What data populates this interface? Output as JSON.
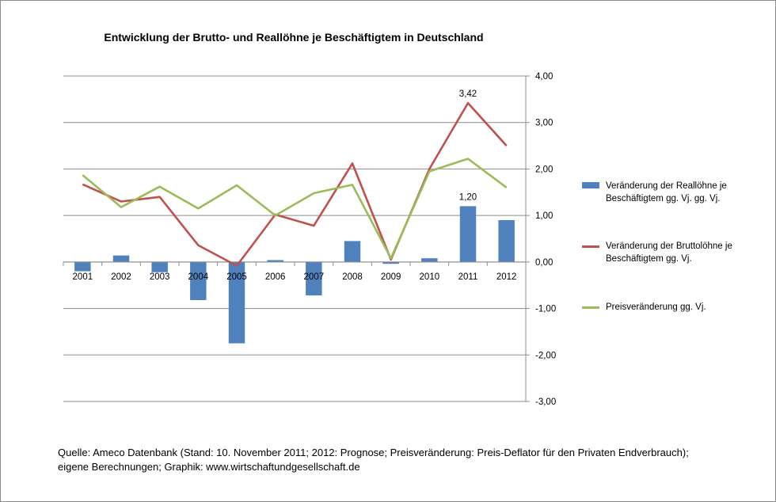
{
  "chart_data": {
    "type": "bar",
    "title": "Entwicklung der Brutto- und Reallöhne je  Beschäftigtem in Deutschland",
    "categories": [
      "2001",
      "2002",
      "2003",
      "2004",
      "2005",
      "2006",
      "2007",
      "2008",
      "2009",
      "2010",
      "2011",
      "2012"
    ],
    "ylim": [
      -3,
      4
    ],
    "yticks": [
      "4,00",
      "3,00",
      "2,00",
      "1,00",
      "0,00",
      "-1,00",
      "-2,00",
      "-3,00"
    ],
    "grid": true,
    "legend_position": "right",
    "series": [
      {
        "name": "Veränderung der Reallöhne je Beschäftigtem gg. Vj. gg. Vj.",
        "type": "bar",
        "color": "#4f81bd",
        "values": [
          -0.2,
          0.14,
          -0.22,
          -0.82,
          -1.75,
          0.04,
          -0.72,
          0.45,
          -0.04,
          0.08,
          1.2,
          0.9
        ]
      },
      {
        "name": "Veränderung der Bruttolöhne je Beschäftigtem  gg. Vj.",
        "type": "line",
        "color": "#c0504d",
        "values": [
          1.67,
          1.3,
          1.4,
          0.36,
          -0.08,
          1.02,
          0.78,
          2.12,
          0.05,
          2.0,
          3.42,
          2.5
        ]
      },
      {
        "name": "Preisveränderung gg. Vj.",
        "type": "line",
        "color": "#9bbb59",
        "values": [
          1.87,
          1.18,
          1.62,
          1.15,
          1.65,
          1.0,
          1.48,
          1.66,
          0.08,
          1.95,
          2.22,
          1.6
        ]
      }
    ],
    "annotations": [
      {
        "series": 0,
        "index": 10,
        "label": "1,20"
      },
      {
        "series": 1,
        "index": 10,
        "label": "3,42"
      }
    ]
  },
  "source_lines": [
    "Quelle: Ameco Datenbank (Stand: 10. November 2011; 2012:  Prognose; Preisveränderung: Preis-Deflator für den Privaten Endverbrauch);",
    "eigene Berechnungen; Graphik: www.wirtschaftundgesellschaft.de"
  ]
}
